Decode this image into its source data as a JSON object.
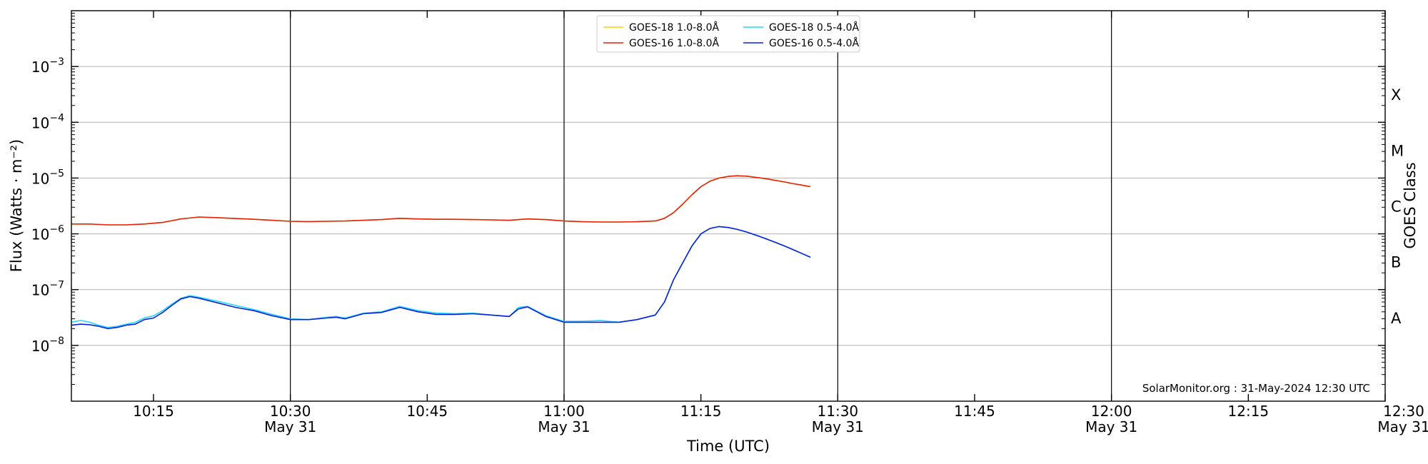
{
  "chart_data": {
    "type": "line",
    "xlabel": "Time (UTC)",
    "ylabel": "Flux (Watts · m⁻²)",
    "y2label": "GOES Class",
    "yscale": "log",
    "xlim": [
      "10:06",
      "12:30"
    ],
    "ylim": [
      1e-09,
      0.01
    ],
    "grid": "horizontal",
    "legend_position": "top-center",
    "x_ticks": [
      {
        "time": "10:15",
        "label": "10:15",
        "date": ""
      },
      {
        "time": "10:30",
        "label": "10:30",
        "date": "May 31"
      },
      {
        "time": "10:45",
        "label": "10:45",
        "date": ""
      },
      {
        "time": "11:00",
        "label": "11:00",
        "date": "May 31"
      },
      {
        "time": "11:15",
        "label": "11:15",
        "date": ""
      },
      {
        "time": "11:30",
        "label": "11:30",
        "date": "May 31"
      },
      {
        "time": "11:45",
        "label": "11:45",
        "date": ""
      },
      {
        "time": "12:00",
        "label": "12:00",
        "date": "May 31"
      },
      {
        "time": "12:15",
        "label": "12:15",
        "date": ""
      },
      {
        "time": "12:30",
        "label": "12:30",
        "date": "May 31"
      }
    ],
    "vertical_lines": [
      "10:30",
      "11:00",
      "11:30",
      "12:00"
    ],
    "y_ticks": [
      {
        "value": 1e-08,
        "base": "10",
        "exp": "−8"
      },
      {
        "value": 1e-07,
        "base": "10",
        "exp": "−7"
      },
      {
        "value": 1e-06,
        "base": "10",
        "exp": "−6"
      },
      {
        "value": 1e-05,
        "base": "10",
        "exp": "−5"
      },
      {
        "value": 0.0001,
        "base": "10",
        "exp": "−4"
      },
      {
        "value": 0.001,
        "base": "10",
        "exp": "−3"
      }
    ],
    "goes_classes": [
      {
        "label": "A",
        "flux": 3.16e-08
      },
      {
        "label": "B",
        "flux": 3.16e-07
      },
      {
        "label": "C",
        "flux": 3.16e-06
      },
      {
        "label": "M",
        "flux": 3.16e-05
      },
      {
        "label": "X",
        "flux": 0.000316
      }
    ],
    "credit": "SolarMonitor.org : 31-May-2024 12:30 UTC",
    "series": [
      {
        "name": "GOES-18 1.0-8.0Å",
        "color": "#ffd000",
        "x": [
          "10:06",
          "10:08",
          "10:10",
          "10:12",
          "10:14",
          "10:16",
          "10:18",
          "10:20",
          "10:22",
          "10:24",
          "10:26",
          "10:28",
          "10:30",
          "10:32",
          "10:34",
          "10:36",
          "10:38",
          "10:40",
          "10:42",
          "10:44",
          "10:46",
          "10:48",
          "10:50",
          "10:52",
          "10:54",
          "10:56",
          "10:58",
          "11:00",
          "11:02",
          "11:04",
          "11:06",
          "11:08",
          "11:10",
          "11:11",
          "11:12",
          "11:13",
          "11:14",
          "11:15",
          "11:16",
          "11:17",
          "11:18",
          "11:19",
          "11:20",
          "11:21",
          "11:22",
          "11:23",
          "11:24",
          "11:25",
          "11:26",
          "11:27"
        ],
        "values": [
          1.5e-06,
          1.5e-06,
          1.45e-06,
          1.45e-06,
          1.5e-06,
          1.6e-06,
          1.85e-06,
          2e-06,
          1.95e-06,
          1.88e-06,
          1.82e-06,
          1.75e-06,
          1.68e-06,
          1.66e-06,
          1.68e-06,
          1.7e-06,
          1.75e-06,
          1.8e-06,
          1.9e-06,
          1.85e-06,
          1.82e-06,
          1.82e-06,
          1.8e-06,
          1.78e-06,
          1.75e-06,
          1.85e-06,
          1.8e-06,
          1.7e-06,
          1.65e-06,
          1.63e-06,
          1.63e-06,
          1.65e-06,
          1.7e-06,
          1.9e-06,
          2.4e-06,
          3.4e-06,
          5e-06,
          7e-06,
          8.8e-06,
          1e-05,
          1.07e-05,
          1.1e-05,
          1.08e-05,
          1.03e-05,
          9.8e-06,
          9.2e-06,
          8.6e-06,
          8e-06,
          7.5e-06,
          7e-06
        ]
      },
      {
        "name": "GOES-18 0.5-4.0Å",
        "color": "#22d8ff",
        "x": [
          "10:06",
          "10:07",
          "10:08",
          "10:09",
          "10:10",
          "10:11",
          "10:12",
          "10:13",
          "10:14",
          "10:15",
          "10:16",
          "10:17",
          "10:18",
          "10:19",
          "10:20",
          "10:22",
          "10:24",
          "10:26",
          "10:28",
          "10:30",
          "10:32",
          "10:34",
          "10:35",
          "10:36",
          "10:38",
          "10:40",
          "10:42",
          "10:44",
          "10:46",
          "10:48",
          "10:50",
          "10:52",
          "10:54",
          "10:55",
          "10:56",
          "10:58",
          "11:00",
          "11:02",
          "11:04",
          "11:06",
          "11:08",
          "11:10",
          "11:11",
          "11:12",
          "11:13",
          "11:14",
          "11:15",
          "11:16",
          "11:17",
          "11:18",
          "11:19",
          "11:20",
          "11:21",
          "11:22",
          "11:23",
          "11:24",
          "11:25",
          "11:26",
          "11:27"
        ],
        "values": [
          2.6e-08,
          2.8e-08,
          2.6e-08,
          2.3e-08,
          2.1e-08,
          2.2e-08,
          2.4e-08,
          2.6e-08,
          3.1e-08,
          3.4e-08,
          4.2e-08,
          5.5e-08,
          7e-08,
          7.8e-08,
          7.3e-08,
          6.2e-08,
          5.2e-08,
          4.4e-08,
          3.6e-08,
          3e-08,
          2.9e-08,
          3.2e-08,
          3.3e-08,
          3.1e-08,
          3.8e-08,
          4e-08,
          5e-08,
          4.2e-08,
          3.8e-08,
          3.7e-08,
          3.8e-08,
          3.5e-08,
          3.3e-08,
          4.8e-08,
          5e-08,
          3.4e-08,
          2.7e-08,
          2.7e-08,
          2.8e-08,
          2.6e-08,
          2.9e-08,
          3.5e-08,
          6e-08,
          1.5e-07,
          3e-07,
          6e-07,
          1e-06,
          1.25e-06,
          1.35e-06,
          1.3e-06,
          1.2e-06,
          1.08e-06,
          9.5e-07,
          8.3e-07,
          7.2e-07,
          6.2e-07,
          5.3e-07,
          4.5e-07,
          3.8e-07
        ]
      },
      {
        "name": "GOES-16 1.0-8.0Å",
        "color": "#e8200c",
        "x": [
          "10:06",
          "10:08",
          "10:10",
          "10:12",
          "10:14",
          "10:16",
          "10:18",
          "10:20",
          "10:22",
          "10:24",
          "10:26",
          "10:28",
          "10:30",
          "10:32",
          "10:34",
          "10:36",
          "10:38",
          "10:40",
          "10:42",
          "10:44",
          "10:46",
          "10:48",
          "10:50",
          "10:52",
          "10:54",
          "10:56",
          "10:58",
          "11:00",
          "11:02",
          "11:04",
          "11:06",
          "11:08",
          "11:10",
          "11:11",
          "11:12",
          "11:13",
          "11:14",
          "11:15",
          "11:16",
          "11:17",
          "11:18",
          "11:19",
          "11:20",
          "11:21",
          "11:22",
          "11:23",
          "11:24",
          "11:25",
          "11:26",
          "11:27"
        ],
        "values": [
          1.5e-06,
          1.5e-06,
          1.45e-06,
          1.45e-06,
          1.5e-06,
          1.6e-06,
          1.85e-06,
          2e-06,
          1.95e-06,
          1.88e-06,
          1.82e-06,
          1.75e-06,
          1.68e-06,
          1.66e-06,
          1.68e-06,
          1.7e-06,
          1.75e-06,
          1.8e-06,
          1.9e-06,
          1.85e-06,
          1.82e-06,
          1.82e-06,
          1.8e-06,
          1.78e-06,
          1.75e-06,
          1.85e-06,
          1.8e-06,
          1.7e-06,
          1.65e-06,
          1.63e-06,
          1.63e-06,
          1.65e-06,
          1.7e-06,
          1.9e-06,
          2.4e-06,
          3.4e-06,
          5e-06,
          7e-06,
          8.8e-06,
          1e-05,
          1.07e-05,
          1.1e-05,
          1.08e-05,
          1.03e-05,
          9.8e-06,
          9.2e-06,
          8.6e-06,
          8e-06,
          7.5e-06,
          7e-06
        ]
      },
      {
        "name": "GOES-16 0.5-4.0Å",
        "color": "#0a20d8",
        "x": [
          "10:06",
          "10:07",
          "10:08",
          "10:09",
          "10:10",
          "10:11",
          "10:12",
          "10:13",
          "10:14",
          "10:15",
          "10:16",
          "10:17",
          "10:18",
          "10:19",
          "10:20",
          "10:22",
          "10:24",
          "10:26",
          "10:28",
          "10:30",
          "10:32",
          "10:34",
          "10:35",
          "10:36",
          "10:38",
          "10:40",
          "10:42",
          "10:44",
          "10:46",
          "10:48",
          "10:50",
          "10:52",
          "10:54",
          "10:55",
          "10:56",
          "10:58",
          "11:00",
          "11:02",
          "11:04",
          "11:06",
          "11:08",
          "11:10",
          "11:11",
          "11:12",
          "11:13",
          "11:14",
          "11:15",
          "11:16",
          "11:17",
          "11:18",
          "11:19",
          "11:20",
          "11:21",
          "11:22",
          "11:23",
          "11:24",
          "11:25",
          "11:26",
          "11:27"
        ],
        "values": [
          2.3e-08,
          2.4e-08,
          2.35e-08,
          2.2e-08,
          2e-08,
          2.1e-08,
          2.3e-08,
          2.4e-08,
          2.9e-08,
          3.1e-08,
          3.9e-08,
          5.2e-08,
          6.8e-08,
          7.5e-08,
          7e-08,
          5.8e-08,
          4.8e-08,
          4.2e-08,
          3.4e-08,
          2.9e-08,
          2.9e-08,
          3.1e-08,
          3.2e-08,
          3e-08,
          3.7e-08,
          3.9e-08,
          4.8e-08,
          4e-08,
          3.6e-08,
          3.6e-08,
          3.7e-08,
          3.5e-08,
          3.3e-08,
          4.5e-08,
          4.9e-08,
          3.3e-08,
          2.6e-08,
          2.6e-08,
          2.6e-08,
          2.6e-08,
          2.9e-08,
          3.5e-08,
          6e-08,
          1.5e-07,
          3e-07,
          6e-07,
          1e-06,
          1.25e-06,
          1.35e-06,
          1.3e-06,
          1.2e-06,
          1.08e-06,
          9.5e-07,
          8.3e-07,
          7.2e-07,
          6.2e-07,
          5.3e-07,
          4.5e-07,
          3.8e-07
        ]
      }
    ]
  }
}
